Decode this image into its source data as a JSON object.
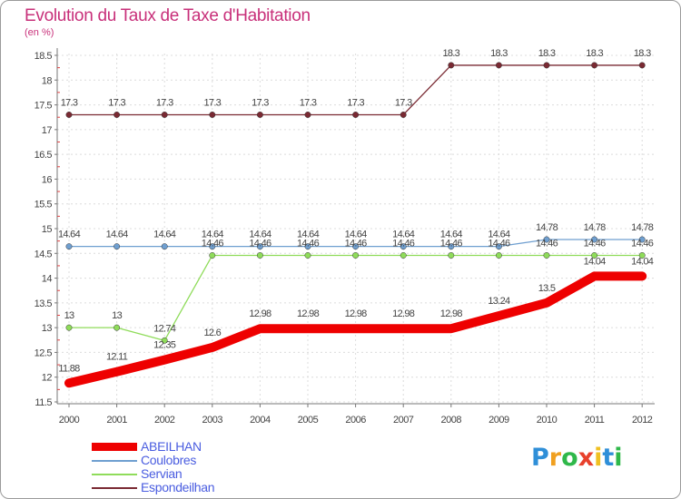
{
  "chart_data": {
    "type": "line",
    "title": "Evolution du Taux de Taxe d'Habitation",
    "subtitle": "(en %)",
    "xlabel": "",
    "ylabel": "",
    "categories": [
      "2000",
      "2001",
      "2002",
      "2003",
      "2004",
      "2005",
      "2006",
      "2007",
      "2008",
      "2009",
      "2010",
      "2011",
      "2012"
    ],
    "ylim": [
      11.5,
      18.5
    ],
    "yticks": [
      "11.5",
      "12",
      "12.5",
      "13",
      "13.5",
      "14",
      "14.5",
      "15",
      "15.5",
      "16",
      "16.5",
      "17",
      "17.5",
      "18",
      "18.5"
    ],
    "legend_position": "bottom-left",
    "series": [
      {
        "name": "ABEILHAN",
        "color": "#ee0000",
        "values": [
          11.88,
          12.11,
          12.35,
          12.6,
          12.98,
          12.98,
          12.98,
          12.98,
          12.98,
          13.24,
          13.5,
          14.04,
          14.04
        ],
        "labels": [
          "11.88",
          "12.11",
          "12.35",
          "12.6",
          "12.98",
          "12.98",
          "12.98",
          "12.98",
          "12.98",
          "13.24",
          "13.5",
          "14.04",
          "14.04"
        ]
      },
      {
        "name": "Coulobres",
        "color": "#6f9fd0",
        "values": [
          14.64,
          14.64,
          14.64,
          14.64,
          14.64,
          14.64,
          14.64,
          14.64,
          14.64,
          14.64,
          14.78,
          14.78,
          14.78
        ],
        "labels": [
          "14.64",
          "14.64",
          "14.64",
          "14.64",
          "14.64",
          "14.64",
          "14.64",
          "14.64",
          "14.64",
          "14.64",
          "14.78",
          "14.78",
          "14.78"
        ]
      },
      {
        "name": "Servian",
        "color": "#8fdc5a",
        "values": [
          13,
          13,
          12.74,
          14.46,
          14.46,
          14.46,
          14.46,
          14.46,
          14.46,
          14.46,
          14.46,
          14.46,
          14.46
        ],
        "labels": [
          "13",
          "13",
          "12.74",
          "14.46",
          "14.46",
          "14.46",
          "14.46",
          "14.46",
          "14.46",
          "14.46",
          "14.46",
          "14.46",
          "14.46"
        ]
      },
      {
        "name": "Espondeilhan",
        "color": "#7a2a33",
        "values": [
          17.3,
          17.3,
          17.3,
          17.3,
          17.3,
          17.3,
          17.3,
          17.3,
          18.3,
          18.3,
          18.3,
          18.3,
          18.3
        ],
        "labels": [
          "17.3",
          "17.3",
          "17.3",
          "17.3",
          "17.3",
          "17.3",
          "17.3",
          "17.3",
          "18.3",
          "18.3",
          "18.3",
          "18.3",
          "18.3"
        ]
      }
    ]
  },
  "logo": {
    "letters": [
      "P",
      "r",
      "o",
      "x",
      "i",
      "t",
      "i"
    ],
    "colors": [
      "#2f8fd8",
      "#f0a020",
      "#2fb84a",
      "#e8412c",
      "#f0c020",
      "#2f8fd8",
      "#2fb84a"
    ]
  }
}
